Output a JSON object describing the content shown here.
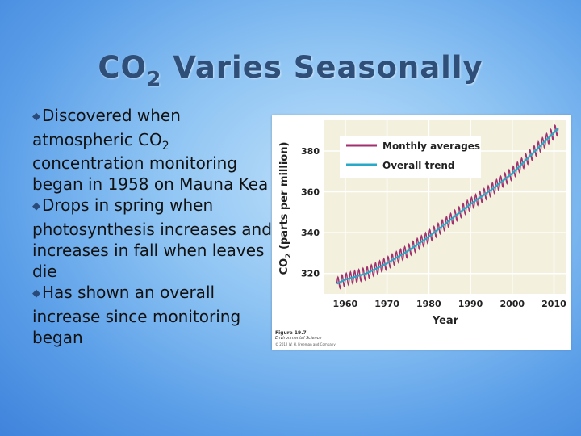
{
  "slide": {
    "title_main": "CO",
    "title_sub": "2",
    "title_rest": " Varies Seasonally",
    "bullets": [
      {
        "mark": "◆",
        "text": "Discovered when atmospheric CO",
        "sub": "2",
        "text2": " concentration monitoring began in 1958 on Mauna Kea"
      },
      {
        "mark": "◆",
        "text": "Drops in spring when photosynthesis increases and increases in fall when leaves die"
      },
      {
        "mark": "◆",
        "text": "Has shown an overall increase since monitoring began"
      }
    ]
  },
  "figure_caption": {
    "number": "Figure 19.7",
    "book": "Environmental Science",
    "copyright": "© 2012 W. H. Freeman and Company"
  },
  "colors": {
    "monthly": "#a0306e",
    "trend": "#2aa8c8",
    "plot_bg": "#f3f1de",
    "gridline": "#ffffff"
  },
  "chart_data": {
    "type": "line",
    "title": "",
    "xlabel": "Year",
    "ylabel_main": "CO",
    "ylabel_sub": "2",
    "ylabel_rest": " (parts per million)",
    "xlim": [
      1955,
      2013
    ],
    "ylim": [
      310,
      395
    ],
    "x_ticks": [
      1960,
      1970,
      1980,
      1990,
      2000,
      2010
    ],
    "y_ticks": [
      320,
      340,
      360,
      380
    ],
    "grid": true,
    "legend_position": "top-left",
    "series": [
      {
        "name": "Monthly averages",
        "seasonal_amplitude": 3,
        "x": [
          1958,
          1960,
          1965,
          1970,
          1975,
          1980,
          1985,
          1990,
          1995,
          2000,
          2005,
          2010,
          2011
        ],
        "values": [
          315,
          317,
          320,
          325,
          331,
          338,
          346,
          354,
          361,
          369,
          379,
          389,
          391
        ]
      },
      {
        "name": "Overall trend",
        "x": [
          1958,
          1960,
          1965,
          1970,
          1975,
          1980,
          1985,
          1990,
          1995,
          2000,
          2005,
          2010,
          2011
        ],
        "values": [
          315,
          317,
          320,
          325,
          331,
          338,
          346,
          354,
          361,
          369,
          379,
          389,
          391
        ]
      }
    ]
  }
}
